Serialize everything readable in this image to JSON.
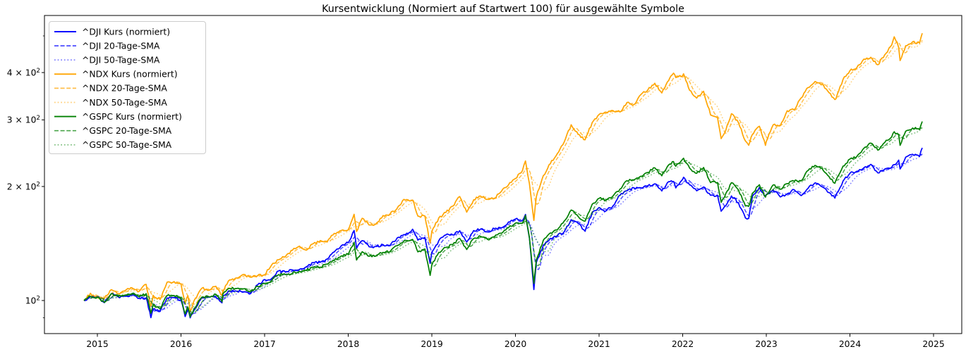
{
  "title": "Kursentwicklung (Normiert auf Startwert 100) für ausgewählte Symbole",
  "x_axis": {
    "ticks": [
      2015,
      2016,
      2017,
      2018,
      2019,
      2020,
      2021,
      2022,
      2023,
      2024,
      2025
    ]
  },
  "y_axis": {
    "scale": "log",
    "major_ticks": [
      {
        "value": 100,
        "mant": "10",
        "sup": "2"
      },
      {
        "value": 200,
        "mant": "2 × 10",
        "sup": "2"
      },
      {
        "value": 300,
        "mant": "3 × 10",
        "sup": "2"
      },
      {
        "value": 400,
        "mant": "4 × 10",
        "sup": "2"
      }
    ],
    "minor_ticks": [
      90,
      500
    ]
  },
  "colors": {
    "dji": "#0000ff",
    "ndx": "#ffa500",
    "gspc": "#008000"
  },
  "legend_position": "upper left",
  "chart_data": {
    "type": "line",
    "title": "Kursentwicklung (Normiert auf Startwert 100) für ausgewählte Symbole",
    "xlabel": "",
    "ylabel": "",
    "grid": false,
    "y_scale": "log",
    "normalized_to": 100,
    "xlim": [
      2014.37,
      2025.34
    ],
    "ylim": [
      82,
      566
    ],
    "x_years": [
      2014.84,
      2014.917,
      2015.0,
      2015.083,
      2015.167,
      2015.25,
      2015.333,
      2015.417,
      2015.5,
      2015.583,
      2015.64,
      2015.667,
      2015.75,
      2015.833,
      2015.917,
      2016.0,
      2016.05,
      2016.083,
      2016.11,
      2016.167,
      2016.25,
      2016.333,
      2016.417,
      2016.49,
      2016.5,
      2016.583,
      2016.667,
      2016.75,
      2016.833,
      2016.917,
      2017.0,
      2017.083,
      2017.167,
      2017.25,
      2017.333,
      2017.417,
      2017.5,
      2017.583,
      2017.667,
      2017.75,
      2017.833,
      2017.917,
      2018.0,
      2018.07,
      2018.1,
      2018.167,
      2018.25,
      2018.333,
      2018.417,
      2018.5,
      2018.583,
      2018.667,
      2018.75,
      2018.77,
      2018.833,
      2018.917,
      2018.98,
      2019.0,
      2019.083,
      2019.167,
      2019.25,
      2019.333,
      2019.417,
      2019.5,
      2019.583,
      2019.667,
      2019.75,
      2019.833,
      2019.917,
      2020.0,
      2020.083,
      2020.12,
      2020.167,
      2020.22,
      2020.25,
      2020.333,
      2020.417,
      2020.5,
      2020.583,
      2020.667,
      2020.75,
      2020.833,
      2020.917,
      2021.0,
      2021.083,
      2021.167,
      2021.25,
      2021.333,
      2021.417,
      2021.5,
      2021.583,
      2021.667,
      2021.75,
      2021.833,
      2021.89,
      2021.917,
      2022.0,
      2022.01,
      2022.083,
      2022.167,
      2022.25,
      2022.333,
      2022.417,
      2022.46,
      2022.5,
      2022.583,
      2022.667,
      2022.75,
      2022.79,
      2022.833,
      2022.917,
      2022.99,
      2023.0,
      2023.083,
      2023.167,
      2023.25,
      2023.333,
      2023.417,
      2023.5,
      2023.583,
      2023.667,
      2023.75,
      2023.82,
      2023.833,
      2023.917,
      2024.0,
      2024.083,
      2024.167,
      2024.25,
      2024.333,
      2024.417,
      2024.5,
      2024.53,
      2024.583,
      2024.6,
      2024.667,
      2024.75,
      2024.833,
      2024.865
    ],
    "series": [
      {
        "key": "dji-kurs",
        "label": "^DJI Kurs (normiert)",
        "symbol": "^DJI",
        "color": "#0000ff",
        "style": "solid",
        "values": [
          100,
          102.5,
          102.5,
          98.7,
          104.3,
          102.2,
          102.6,
          103.6,
          101.3,
          101.7,
          90.1,
          95.0,
          93.6,
          101.6,
          101.9,
          100.2,
          90.7,
          94.7,
          90.0,
          95.0,
          101.7,
          102.2,
          102.3,
          98.6,
          103.1,
          106.0,
          105.8,
          105.3,
          104.3,
          110.0,
          113.6,
          114.2,
          119.7,
          118.8,
          120.4,
          120.8,
          122.8,
          125.9,
          126.2,
          128.8,
          134.4,
          139.6,
          142.1,
          153.1,
          137.2,
          143.9,
          138.6,
          138.9,
          140.4,
          139.6,
          146.1,
          149.3,
          152.1,
          154.3,
          144.4,
          146.8,
          125.3,
          134.1,
          143.8,
          149.0,
          149.1,
          152.9,
          142.7,
          153.0,
          154.5,
          151.8,
          154.8,
          155.5,
          161.3,
          164.1,
          162.5,
          168.8,
          146.1,
          106.9,
          126.0,
          140.0,
          146.0,
          148.4,
          152.0,
          163.5,
          159.8,
          152.4,
          170.4,
          176.0,
          172.4,
          177.9,
          189.7,
          194.8,
          198.5,
          198.4,
          200.9,
          203.3,
          194.6,
          206.0,
          206.3,
          198.3,
          209.0,
          211.6,
          202.0,
          194.9,
          199.4,
          189.6,
          189.7,
          172.1,
          177.0,
          188.9,
          181.2,
          165.2,
          164.8,
          188.2,
          198.9,
          189.0,
          190.6,
          196.0,
          187.8,
          191.3,
          196.1,
          189.2,
          197.9,
          204.5,
          199.7,
          192.7,
          186.4,
          190.1,
          206.7,
          216.7,
          219.4,
          224.2,
          228.9,
          217.4,
          222.4,
          225.0,
          228.4,
          234.9,
          222.5,
          239.0,
          243.4,
          240.2,
          253.0
        ]
      },
      {
        "key": "dji-sma20",
        "label": "^DJI 20-Tage-SMA",
        "symbol": "^DJI",
        "color": "#0000ff",
        "style": "dashed",
        "derived_from": "dji-kurs",
        "window_days": 20
      },
      {
        "key": "dji-sma50",
        "label": "^DJI 50-Tage-SMA",
        "symbol": "^DJI",
        "color": "#0000ff",
        "style": "dotted",
        "derived_from": "dji-kurs",
        "window_days": 50
      },
      {
        "key": "ndx-kurs",
        "label": "^NDX Kurs (normiert)",
        "symbol": "^NDX",
        "color": "#ffa500",
        "style": "solid",
        "values": [
          100,
          104.5,
          101.9,
          101.2,
          106.8,
          104.2,
          106.2,
          107.9,
          105.7,
          110.3,
          96.6,
          103.2,
          100.6,
          111.7,
          112.2,
          110.5,
          98.4,
          102.9,
          93.5,
          101.0,
          107.8,
          106.4,
          109.1,
          103.1,
          106.0,
          113.4,
          114.7,
          117.2,
          115.2,
          116.4,
          116.9,
          124.0,
          128.1,
          130.7,
          135.8,
          139.2,
          135.8,
          141.4,
          144.0,
          143.1,
          150.4,
          153.1,
          153.8,
          168.9,
          152.1,
          164.9,
          158.3,
          159.6,
          167.6,
          169.3,
          174.9,
          185.0,
          183.4,
          184.2,
          167.1,
          167.1,
          141.8,
          152.2,
          165.2,
          170.8,
          177.5,
          188.2,
          171.1,
          184.5,
          188.7,
          185.0,
          186.4,
          194.4,
          202.1,
          210.0,
          220.1,
          233.7,
          203.5,
          162.8,
          187.9,
          213.8,
          229.8,
          244.3,
          262.3,
          291.2,
          274.6,
          265.8,
          295.0,
          309.9,
          314.4,
          317.3,
          314.8,
          333.3,
          329.2,
          350.0,
          359.8,
          374.8,
          353.3,
          381.2,
          398.6,
          388.0,
          392.5,
          396.9,
          359.1,
          342.4,
          356.9,
          309.2,
          304.0,
          267.6,
          276.7,
          311.4,
          295.1,
          263.9,
          257.1,
          274.3,
          288.5,
          256.8,
          263.1,
          291.1,
          289.6,
          317.0,
          318.5,
          342.8,
          365.1,
          378.9,
          372.8,
          353.9,
          339.3,
          341.0,
          383.5,
          404.7,
          412.1,
          434.0,
          439.0,
          419.5,
          445.8,
          473.4,
          497.2,
          465.7,
          430.4,
          470.8,
          482.4,
          478.4,
          507.9
        ]
      },
      {
        "key": "ndx-sma20",
        "label": "^NDX 20-Tage-SMA",
        "symbol": "^NDX",
        "color": "#ffa500",
        "style": "dashed",
        "derived_from": "ndx-kurs",
        "window_days": 20
      },
      {
        "key": "ndx-sma50",
        "label": "^NDX 50-Tage-SMA",
        "symbol": "^NDX",
        "color": "#ffa500",
        "style": "dotted",
        "derived_from": "ndx-kurs",
        "window_days": 50
      },
      {
        "key": "gspc-kurs",
        "label": "^GSPC Kurs (normiert)",
        "symbol": "^GSPC",
        "color": "#008000",
        "style": "solid",
        "values": [
          100,
          102.5,
          102.0,
          98.9,
          104.3,
          102.5,
          103.4,
          104.4,
          102.2,
          104.3,
          92.6,
          97.7,
          95.1,
          103.0,
          103.1,
          101.3,
          92.1,
          96.1,
          90.6,
          95.7,
          102.1,
          102.3,
          103.9,
          99.2,
          104.0,
          107.7,
          107.6,
          107.4,
          105.4,
          109.0,
          110.9,
          112.9,
          117.1,
          117.1,
          118.1,
          119.5,
          120.1,
          122.4,
          122.5,
          124.8,
          127.6,
          131.2,
          132.5,
          142.4,
          127.9,
          134.5,
          130.9,
          131.2,
          134.0,
          134.7,
          139.5,
          143.8,
          144.4,
          145.0,
          134.4,
          136.8,
          116.5,
          124.2,
          134.0,
          138.0,
          140.4,
          146.0,
          136.4,
          145.8,
          147.7,
          145.0,
          147.5,
          150.5,
          155.6,
          160.1,
          159.9,
          167.8,
          146.4,
          110.9,
          128.1,
          144.3,
          150.8,
          153.6,
          162.1,
          173.4,
          166.7,
          162.0,
          179.5,
          186.1,
          184.0,
          188.9,
          196.9,
          207.2,
          208.3,
          213.0,
          217.8,
          224.1,
          213.5,
          228.2,
          232.8,
          226.3,
          236.2,
          237.6,
          223.8,
          216.7,
          224.5,
          204.8,
          204.8,
          181.7,
          187.6,
          204.7,
          196.0,
          177.7,
          177.3,
          191.9,
          202.2,
          187.5,
          190.3,
          202.0,
          196.7,
          203.6,
          206.6,
          207.1,
          220.5,
          227.4,
          223.4,
          212.5,
          204.0,
          207.8,
          226.4,
          236.4,
          240.1,
          252.5,
          260.4,
          249.6,
          261.5,
          270.6,
          279.1,
          273.6,
          257.0,
          279.9,
          285.5,
          282.7,
          297.1
        ]
      },
      {
        "key": "gspc-sma20",
        "label": "^GSPC 20-Tage-SMA",
        "symbol": "^GSPC",
        "color": "#008000",
        "style": "dashed",
        "derived_from": "gspc-kurs",
        "window_days": 20
      },
      {
        "key": "gspc-sma50",
        "label": "^GSPC 50-Tage-SMA",
        "symbol": "^GSPC",
        "color": "#008000",
        "style": "dotted",
        "derived_from": "gspc-kurs",
        "window_days": 50
      }
    ]
  }
}
